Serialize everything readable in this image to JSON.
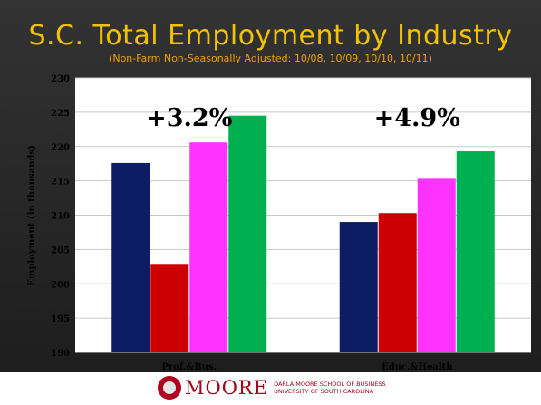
{
  "chart_data": {
    "type": "bar",
    "title": "S.C. Total Employment by Industry",
    "subtitle": "(Non-Farm Non-Seasonally Adjusted: 10/08, 10/09, 10/10, 10/11)",
    "ylabel": "Employment (in thousands)",
    "xlabel": "",
    "ylim": [
      190,
      230
    ],
    "yticks": [
      190,
      195,
      200,
      205,
      210,
      215,
      220,
      225,
      230
    ],
    "grid": true,
    "categories": [
      "Prof.&Bus.",
      "Educ.&Health"
    ],
    "series": [
      {
        "values": [
          217.6,
          209.0
        ],
        "color": "#0d1d63"
      },
      {
        "values": [
          202.9,
          210.3
        ],
        "color": "#cc0000"
      },
      {
        "values": [
          220.6,
          215.3
        ],
        "color": "#ff33ff"
      },
      {
        "values": [
          224.5,
          219.3
        ],
        "color": "#00b050"
      }
    ],
    "annotations": [
      "+3.2%",
      "+4.9%"
    ]
  },
  "footer": {
    "logo_text": "MOORE",
    "school_line1": "DARLA MOORE SCHOOL OF BUSINESS",
    "school_line2": "UNIVERSITY OF SOUTH CAROLINA"
  }
}
